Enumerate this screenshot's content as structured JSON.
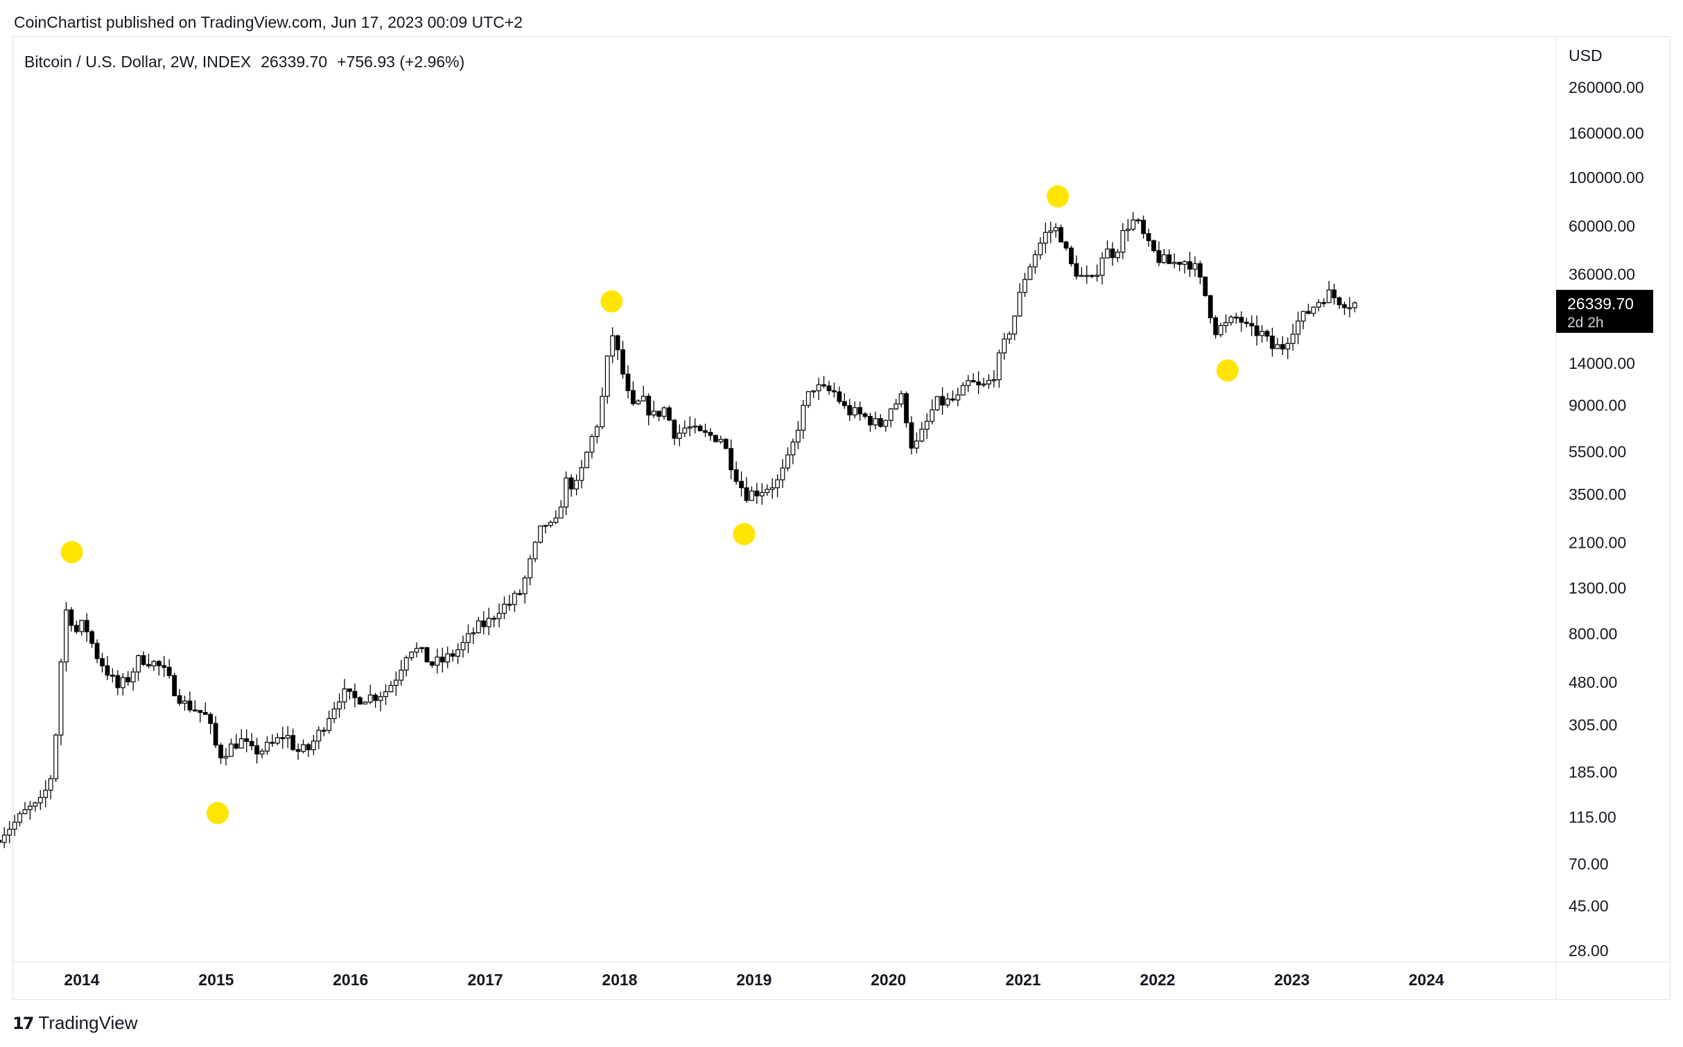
{
  "header": {
    "publisher_line": "CoinChartist published on TradingView.com, Jun 17, 2023 00:09 UTC+2"
  },
  "symbol": {
    "name": "Bitcoin / U.S. Dollar, 2W, INDEX",
    "last": "26339.70",
    "change": "+756.93 (+2.96%)"
  },
  "price_badge": {
    "price": "26339.70",
    "countdown": "2d 2h"
  },
  "footer": {
    "brand": "TradingView"
  },
  "colors": {
    "marker": "#FFE500",
    "candle": "#000000",
    "axis_text": "#131722",
    "badge_bg": "#000000"
  },
  "chart_data": {
    "type": "candlestick",
    "currency_label": "USD",
    "scale": "log",
    "grid": false,
    "ylim": [
      25,
      330000
    ],
    "y_ticks": [
      260000,
      160000,
      100000,
      60000,
      36000,
      26339.7,
      14000,
      9000,
      5500,
      3500,
      2100,
      1300,
      800,
      480,
      305,
      185,
      115,
      70,
      45,
      28
    ],
    "y_tick_labels": [
      "260000.00",
      "160000.00",
      "100000.00",
      "60000.00",
      "36000.00",
      "",
      "14000.00",
      "9000.00",
      "5500.00",
      "3500.00",
      "2100.00",
      "1300.00",
      "800.00",
      "480.00",
      "305.00",
      "185.00",
      "115.00",
      "70.00",
      "45.00",
      "28.00"
    ],
    "xlim": [
      "2013-05-15",
      "2024-12-31"
    ],
    "x_ticks": [
      "2014-01-01",
      "2015-01-01",
      "2016-01-01",
      "2017-01-01",
      "2018-01-01",
      "2019-01-01",
      "2020-01-01",
      "2021-01-01",
      "2022-01-01",
      "2023-01-01",
      "2024-01-01"
    ],
    "x_tick_labels": [
      "2014",
      "2015",
      "2016",
      "2017",
      "2018",
      "2019",
      "2020",
      "2021",
      "2022",
      "2023",
      "2024"
    ],
    "price_path": [
      [
        "2013-05-15",
        90
      ],
      [
        "2013-06-15",
        100
      ],
      [
        "2013-07-15",
        110
      ],
      [
        "2013-08-15",
        125
      ],
      [
        "2013-09-15",
        130
      ],
      [
        "2013-10-15",
        170
      ],
      [
        "2013-11-01",
        300
      ],
      [
        "2013-11-20",
        900
      ],
      [
        "2013-12-01",
        1100
      ],
      [
        "2013-12-20",
        800
      ],
      [
        "2014-01-15",
        900
      ],
      [
        "2014-02-15",
        650
      ],
      [
        "2014-03-15",
        550
      ],
      [
        "2014-04-15",
        450
      ],
      [
        "2014-05-15",
        500
      ],
      [
        "2014-06-15",
        620
      ],
      [
        "2014-07-15",
        600
      ],
      [
        "2014-08-15",
        550
      ],
      [
        "2014-09-15",
        450
      ],
      [
        "2014-10-15",
        380
      ],
      [
        "2014-11-15",
        360
      ],
      [
        "2014-12-15",
        330
      ],
      [
        "2015-01-15",
        220
      ],
      [
        "2015-02-15",
        240
      ],
      [
        "2015-03-15",
        260
      ],
      [
        "2015-04-15",
        230
      ],
      [
        "2015-05-15",
        235
      ],
      [
        "2015-06-15",
        250
      ],
      [
        "2015-07-15",
        280
      ],
      [
        "2015-08-15",
        230
      ],
      [
        "2015-09-15",
        235
      ],
      [
        "2015-10-15",
        280
      ],
      [
        "2015-11-15",
        350
      ],
      [
        "2015-12-15",
        430
      ],
      [
        "2016-01-15",
        400
      ],
      [
        "2016-02-15",
        410
      ],
      [
        "2016-03-15",
        415
      ],
      [
        "2016-04-15",
        440
      ],
      [
        "2016-05-15",
        520
      ],
      [
        "2016-06-15",
        700
      ],
      [
        "2016-07-15",
        660
      ],
      [
        "2016-08-15",
        580
      ],
      [
        "2016-09-15",
        600
      ],
      [
        "2016-10-15",
        650
      ],
      [
        "2016-11-15",
        730
      ],
      [
        "2016-12-15",
        850
      ],
      [
        "2017-01-15",
        900
      ],
      [
        "2017-02-15",
        1050
      ],
      [
        "2017-03-15",
        1100
      ],
      [
        "2017-04-15",
        1250
      ],
      [
        "2017-05-15",
        1800
      ],
      [
        "2017-06-15",
        2600
      ],
      [
        "2017-07-15",
        2400
      ],
      [
        "2017-08-15",
        4000
      ],
      [
        "2017-09-15",
        3800
      ],
      [
        "2017-10-15",
        5700
      ],
      [
        "2017-11-15",
        8000
      ],
      [
        "2017-12-10",
        16000
      ],
      [
        "2017-12-20",
        19000
      ],
      [
        "2018-01-10",
        14000
      ],
      [
        "2018-02-10",
        8500
      ],
      [
        "2018-03-10",
        9500
      ],
      [
        "2018-04-10",
        8000
      ],
      [
        "2018-05-10",
        8700
      ],
      [
        "2018-06-10",
        6500
      ],
      [
        "2018-07-10",
        7200
      ],
      [
        "2018-08-10",
        6600
      ],
      [
        "2018-09-10",
        6500
      ],
      [
        "2018-10-10",
        6400
      ],
      [
        "2018-11-15",
        4500
      ],
      [
        "2018-12-15",
        3500
      ],
      [
        "2019-01-15",
        3600
      ],
      [
        "2019-02-15",
        3800
      ],
      [
        "2019-03-15",
        4000
      ],
      [
        "2019-04-15",
        5200
      ],
      [
        "2019-05-15",
        8000
      ],
      [
        "2019-06-15",
        11000
      ],
      [
        "2019-07-15",
        10500
      ],
      [
        "2019-08-15",
        10300
      ],
      [
        "2019-09-15",
        8500
      ],
      [
        "2019-10-15",
        8200
      ],
      [
        "2019-11-15",
        7800
      ],
      [
        "2019-12-15",
        7200
      ],
      [
        "2020-01-15",
        8800
      ],
      [
        "2020-02-15",
        9800
      ],
      [
        "2020-03-15",
        5500
      ],
      [
        "2020-04-15",
        7000
      ],
      [
        "2020-05-15",
        9200
      ],
      [
        "2020-06-15",
        9300
      ],
      [
        "2020-07-15",
        9600
      ],
      [
        "2020-08-15",
        11500
      ],
      [
        "2020-09-15",
        10700
      ],
      [
        "2020-10-15",
        11800
      ],
      [
        "2020-11-15",
        16500
      ],
      [
        "2020-12-15",
        23000
      ],
      [
        "2021-01-15",
        36000
      ],
      [
        "2021-02-15",
        47000
      ],
      [
        "2021-03-15",
        57000
      ],
      [
        "2021-04-15",
        58000
      ],
      [
        "2021-05-15",
        40000
      ],
      [
        "2021-06-15",
        35000
      ],
      [
        "2021-07-15",
        33000
      ],
      [
        "2021-08-15",
        46000
      ],
      [
        "2021-09-15",
        45000
      ],
      [
        "2021-10-15",
        60000
      ],
      [
        "2021-11-10",
        64000
      ],
      [
        "2021-12-15",
        48000
      ],
      [
        "2022-01-15",
        42000
      ],
      [
        "2022-02-15",
        40000
      ],
      [
        "2022-03-15",
        42000
      ],
      [
        "2022-04-15",
        40000
      ],
      [
        "2022-05-15",
        30000
      ],
      [
        "2022-06-15",
        20000
      ],
      [
        "2022-07-15",
        21000
      ],
      [
        "2022-08-15",
        23000
      ],
      [
        "2022-09-15",
        19500
      ],
      [
        "2022-10-15",
        19500
      ],
      [
        "2022-11-15",
        16500
      ],
      [
        "2022-12-15",
        16800
      ],
      [
        "2023-01-15",
        21000
      ],
      [
        "2023-02-15",
        23500
      ],
      [
        "2023-03-15",
        26500
      ],
      [
        "2023-04-15",
        29500
      ],
      [
        "2023-05-15",
        27500
      ],
      [
        "2023-06-15",
        26339.7
      ]
    ],
    "markers": [
      {
        "date": "2013-12-05",
        "price": 1900
      },
      {
        "date": "2015-01-05",
        "price": 120
      },
      {
        "date": "2017-12-10",
        "price": 27000
      },
      {
        "date": "2018-12-05",
        "price": 2300
      },
      {
        "date": "2021-04-05",
        "price": 82000
      },
      {
        "date": "2022-07-10",
        "price": 13000
      }
    ]
  }
}
